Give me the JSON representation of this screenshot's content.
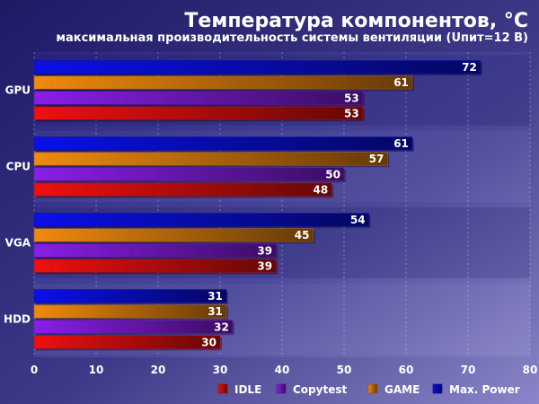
{
  "chart_data": {
    "type": "bar",
    "orientation": "horizontal",
    "title": "Температура компонентов, °C",
    "subtitle": "максимальная производительность системы вентиляции (Uпит=12 В)",
    "categories": [
      "GPU",
      "CPU",
      "VGA",
      "HDD"
    ],
    "series": [
      {
        "name": "Max. Power",
        "color": "#0a10e8",
        "values": [
          72,
          61,
          54,
          31
        ]
      },
      {
        "name": "GAME",
        "color": "#f08a10",
        "values": [
          61,
          57,
          45,
          31
        ]
      },
      {
        "name": "Copytest",
        "color": "#8a1ee8",
        "values": [
          53,
          50,
          39,
          32
        ]
      },
      {
        "name": "IDLE",
        "color": "#f01010",
        "values": [
          53,
          48,
          39,
          30
        ]
      }
    ],
    "legend_order": [
      "IDLE",
      "Copytest",
      "GAME",
      "Max. Power"
    ],
    "xlim": [
      0,
      80
    ],
    "xticks": [
      0,
      10,
      20,
      30,
      40,
      50,
      60,
      70,
      80
    ],
    "grid": true,
    "legend_position": "bottom-right"
  }
}
